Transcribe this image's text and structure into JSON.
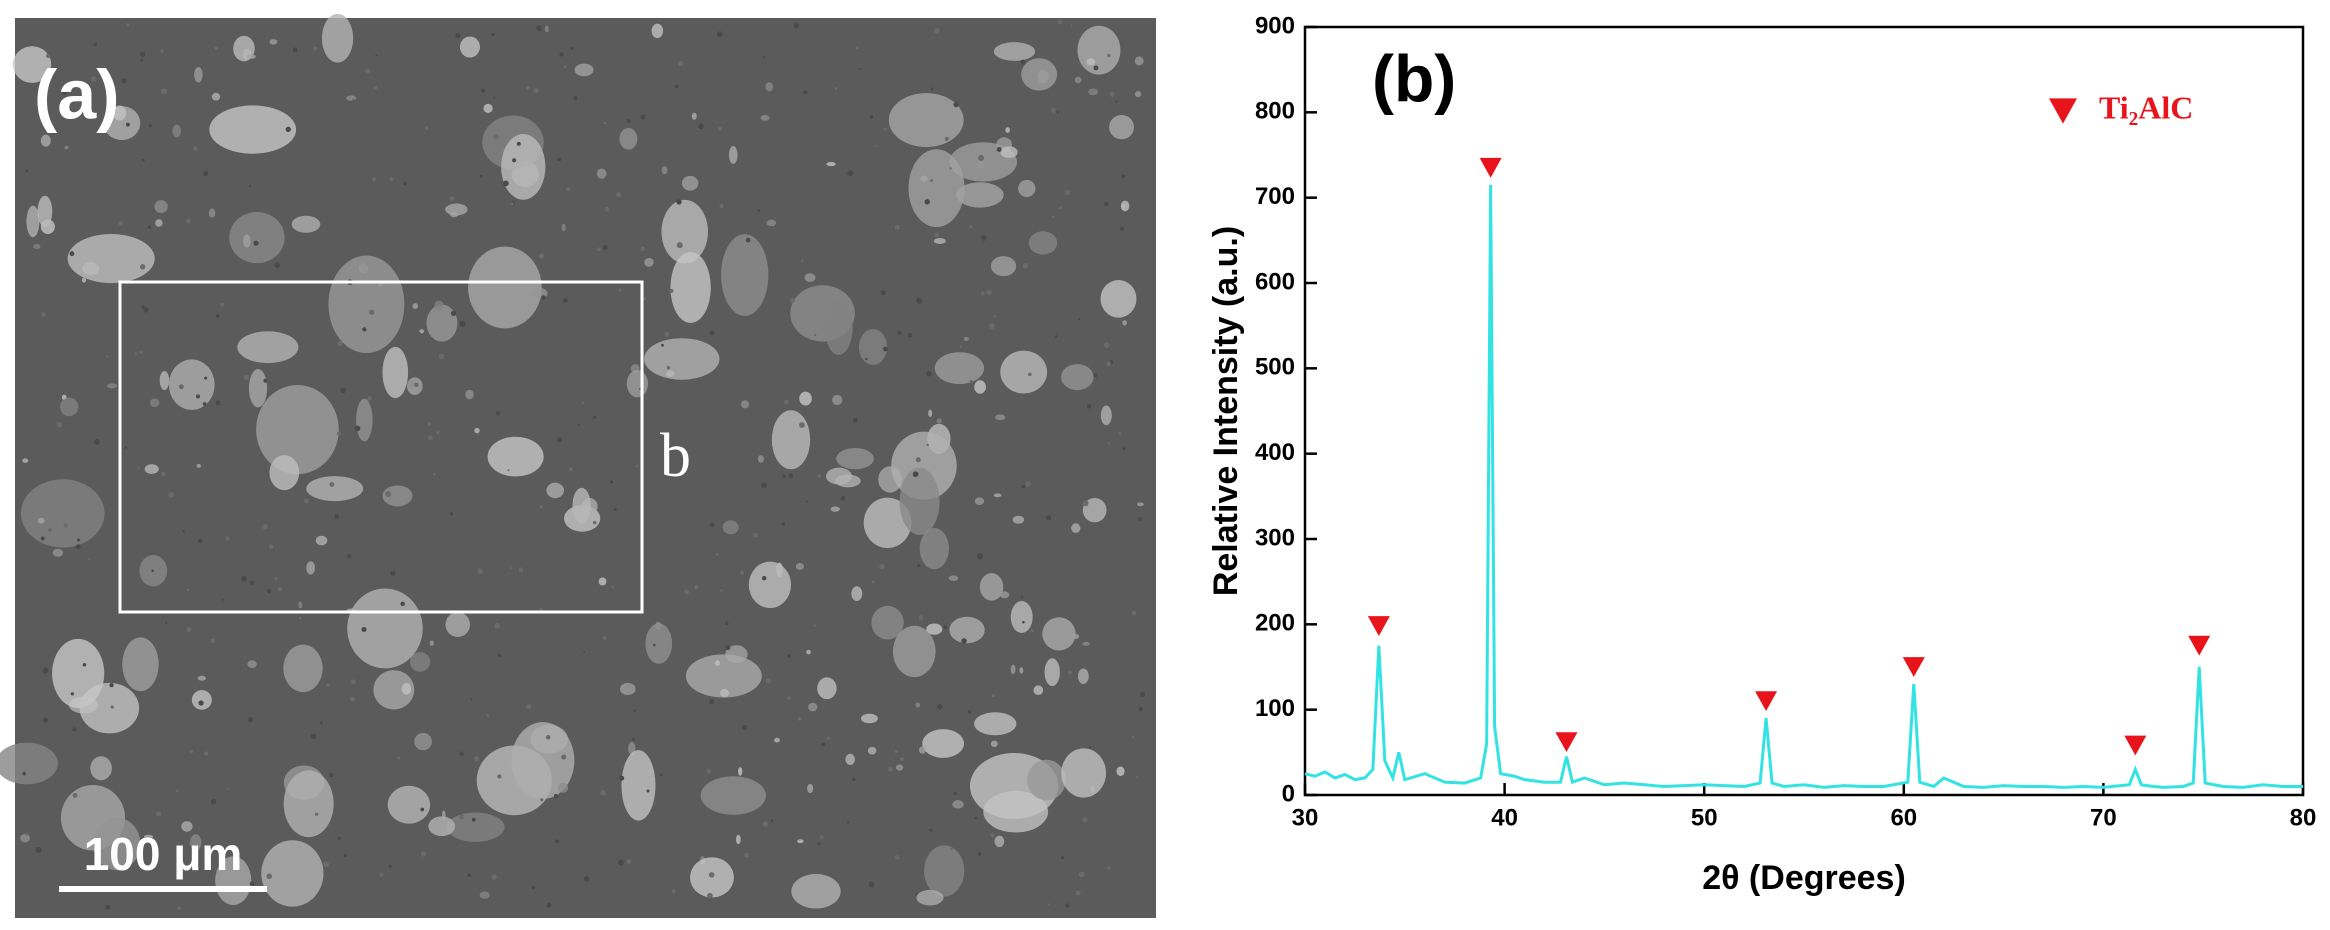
{
  "panel_a": {
    "label": "(a)",
    "region_label": "b",
    "scale_bar": "100 μm"
  },
  "chart_data": {
    "type": "line",
    "label": "(b)",
    "xlabel": "2θ (Degrees)",
    "ylabel": "Relative Intensity (a.u.)",
    "xlim": [
      30,
      80
    ],
    "xticks": [
      30,
      40,
      50,
      60,
      70,
      80
    ],
    "ylim": [
      0,
      900
    ],
    "yticks": [
      0,
      100,
      200,
      300,
      400,
      500,
      600,
      700,
      800,
      900
    ],
    "legend": "upper right",
    "series": [
      {
        "type": "line",
        "color": "#33e3e3",
        "x": [
          30,
          30.5,
          31,
          31.5,
          32,
          32.5,
          33,
          33.4,
          33.7,
          34,
          34.4,
          34.7,
          35,
          36,
          37,
          38,
          38.8,
          39.1,
          39.3,
          39.5,
          39.8,
          40.5,
          41,
          42,
          42.8,
          43.1,
          43.4,
          44,
          45,
          46,
          47,
          48,
          49,
          50,
          51,
          52,
          52.8,
          53.1,
          53.4,
          54,
          55,
          56,
          57,
          58,
          59,
          60.2,
          60.5,
          60.8,
          61.5,
          62,
          63,
          64,
          65,
          66,
          67,
          68,
          69,
          70,
          71.3,
          71.6,
          71.9,
          72.5,
          73,
          74,
          74.5,
          74.8,
          75.1,
          76,
          77,
          78,
          79,
          80
        ],
        "values": [
          25,
          22,
          27,
          20,
          24,
          18,
          20,
          30,
          175,
          40,
          20,
          50,
          18,
          25,
          15,
          14,
          20,
          60,
          715,
          80,
          25,
          22,
          18,
          15,
          15,
          45,
          15,
          20,
          12,
          14,
          12,
          10,
          11,
          12,
          11,
          10,
          14,
          90,
          14,
          10,
          12,
          9,
          11,
          10,
          10,
          15,
          130,
          15,
          10,
          20,
          10,
          9,
          11,
          10,
          10,
          9,
          10,
          9,
          12,
          30,
          12,
          10,
          9,
          10,
          14,
          150,
          14,
          10,
          9,
          12,
          10,
          10
        ]
      },
      {
        "type": "scatter",
        "name": "Ti₂AlC",
        "color": "#e8141c",
        "x": [
          33.7,
          39.3,
          43.1,
          53.1,
          60.5,
          71.6,
          74.8
        ],
        "values": [
          198,
          735,
          62,
          110,
          150,
          58,
          175
        ]
      }
    ]
  }
}
